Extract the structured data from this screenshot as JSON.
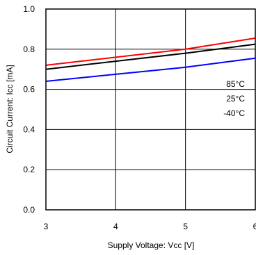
{
  "chart_data": {
    "type": "line",
    "title": "",
    "xlabel": "Supply Voltage: Vcc [V]",
    "ylabel": "Circuit Current: Icc [mA]",
    "xlim": [
      3,
      6
    ],
    "ylim": [
      0,
      1.0
    ],
    "x_ticks": [
      3,
      4,
      5,
      6
    ],
    "x_tick_labels": [
      "3",
      "4",
      "5",
      "6"
    ],
    "y_ticks": [
      0,
      0.2,
      0.4,
      0.6,
      0.8,
      1.0
    ],
    "y_tick_labels": [
      "0.0",
      "0.2",
      "0.4",
      "0.6",
      "0.8",
      "1.0"
    ],
    "grid": true,
    "legend_position": "right, inside plot",
    "series": [
      {
        "name": "85°C",
        "color": "#ff0000",
        "x": [
          3,
          4,
          5,
          6
        ],
        "values": [
          0.72,
          0.76,
          0.8,
          0.855
        ]
      },
      {
        "name": "25°C",
        "color": "#000000",
        "x": [
          3,
          4,
          5,
          6
        ],
        "values": [
          0.7,
          0.74,
          0.78,
          0.825
        ]
      },
      {
        "name": "-40°C",
        "color": "#0000ff",
        "x": [
          3,
          4,
          5,
          6
        ],
        "values": [
          0.64,
          0.675,
          0.71,
          0.755
        ]
      }
    ]
  }
}
